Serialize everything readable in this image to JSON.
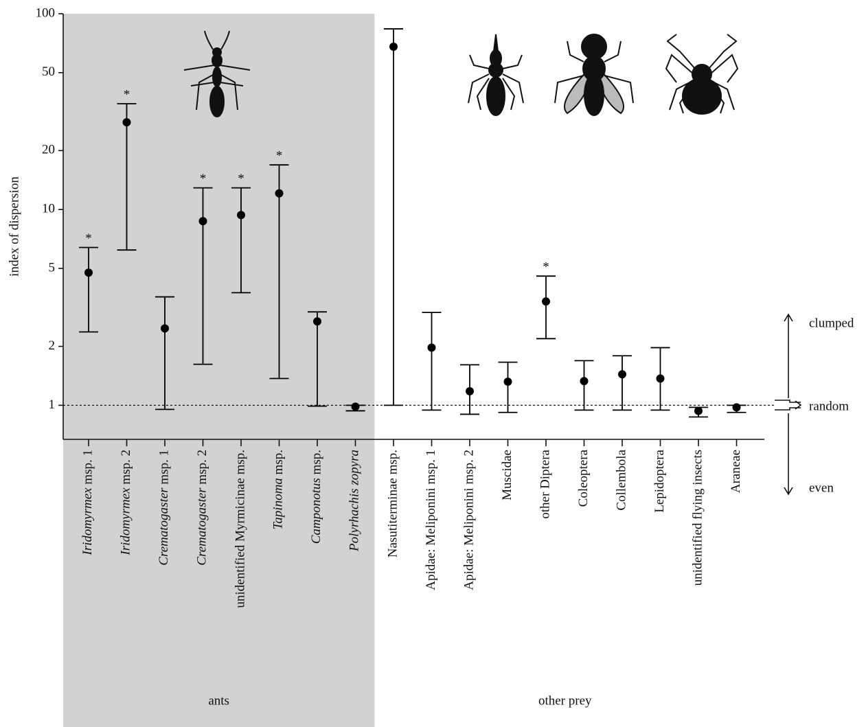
{
  "chart_data": {
    "type": "errorbar",
    "y_label": "index of dispersion",
    "log_scale": true,
    "ylim": [
      0.67,
      100
    ],
    "yticks": [
      1,
      2,
      5,
      10,
      20,
      50,
      100
    ],
    "reference_line": 1,
    "color": "#000000",
    "categories": [
      "Iridomyrmex msp. 1",
      "Iridomyrmex msp. 2",
      "Crematogaster msp. 1",
      "Crematogaster msp. 2",
      "unidentified Myrmicinae msp.",
      "Tapinoma msp.",
      "Camponotus msp.",
      "Polyrhachis zopyra",
      "Nasutiterminae msp.",
      "Apidae: Meliponini msp. 1",
      "Apidae: Meliponini msp. 2",
      "Muscidae",
      "other Diptera",
      "Coleoptera",
      "Collembola",
      "Lepidoptera",
      "unidentified flying insects",
      "Araneae"
    ],
    "values": [
      4.76,
      27.9,
      2.47,
      8.72,
      9.37,
      12.1,
      2.68,
      0.984,
      67.9,
      1.97,
      1.18,
      1.32,
      3.39,
      1.33,
      1.44,
      1.37,
      0.937,
      0.976
    ],
    "lower": [
      2.37,
      6.21,
      0.953,
      1.62,
      3.76,
      1.37,
      0.99,
      0.937,
      1.0,
      0.945,
      0.9,
      0.92,
      2.19,
      0.945,
      0.945,
      0.945,
      0.872,
      0.92
    ],
    "upper": [
      6.4,
      34.7,
      3.58,
      12.9,
      12.9,
      16.9,
      3.0,
      1.0,
      83.7,
      2.98,
      1.61,
      1.66,
      4.57,
      1.69,
      1.79,
      1.97,
      0.976,
      1.0
    ],
    "annotations": [
      "*",
      "*",
      null,
      "*",
      "*",
      "*",
      null,
      null,
      null,
      null,
      null,
      null,
      "*",
      null,
      null,
      null,
      null,
      null
    ],
    "groups": [
      {
        "label": "ants",
        "count": 8,
        "color": "#d1d2d4"
      },
      {
        "label": "other prey",
        "count": 10
      }
    ],
    "dispersion_labels": [
      "clumped",
      "random",
      "even"
    ]
  }
}
